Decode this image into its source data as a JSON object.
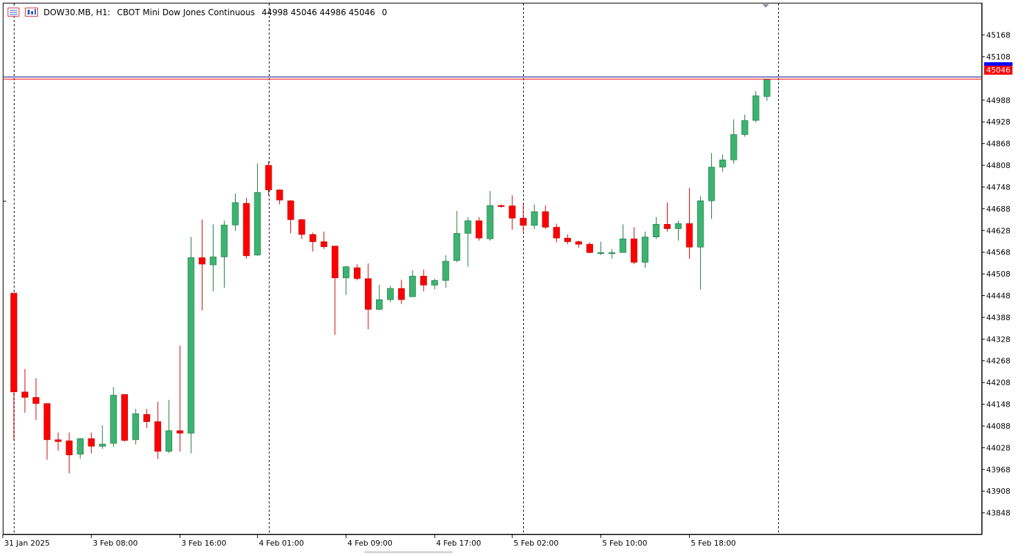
{
  "header": {
    "symbol": "DOW30.MB, H1:",
    "description": "CBOT Mini Dow Jones Continuous",
    "ohlc": "44998 45046 44986 45046",
    "extra": "0",
    "icons": [
      "trade-panel-icon",
      "chart-window-icon"
    ]
  },
  "colors": {
    "bull": "#3cb371",
    "bear": "#ff0000",
    "wick_bull": "#1a7a3a",
    "wick_bear": "#cc0000",
    "grid_separator": "#000000",
    "ask_line": "#000080",
    "bid_line": "#ff0000",
    "bid_label_bg": "#ff0000",
    "ask_label_bg": "#0000ff"
  },
  "price_label": "45046",
  "chart_data": {
    "type": "candlestick",
    "timeframe": "H1",
    "ylim": [
      43790,
      45255
    ],
    "yticks": [
      45168,
      45108,
      44988,
      44928,
      44868,
      44808,
      44748,
      44688,
      44628,
      44568,
      44508,
      44448,
      44388,
      44328,
      44268,
      44208,
      44148,
      44088,
      44028,
      43968,
      43908,
      43848
    ],
    "xticks": [
      "31 Jan 2025",
      "3 Feb 08:00",
      "3 Feb 16:00",
      "4 Feb 01:00",
      "4 Feb 09:00",
      "4 Feb 17:00",
      "5 Feb 02:00",
      "5 Feb 10:00",
      "5 Feb 18:00"
    ],
    "last_price": 45046,
    "ask_price": 45052,
    "candles": [
      {
        "o": 44455,
        "h": 44455,
        "l": 44050,
        "c": 44182
      },
      {
        "o": 44182,
        "h": 44245,
        "l": 44125,
        "c": 44167
      },
      {
        "o": 44167,
        "h": 44220,
        "l": 44105,
        "c": 44150
      },
      {
        "o": 44150,
        "h": 44150,
        "l": 43995,
        "c": 44050
      },
      {
        "o": 44050,
        "h": 44070,
        "l": 44020,
        "c": 44045
      },
      {
        "o": 44047,
        "h": 44070,
        "l": 43957,
        "c": 44008
      },
      {
        "o": 44010,
        "h": 44055,
        "l": 43997,
        "c": 44053
      },
      {
        "o": 44053,
        "h": 44070,
        "l": 44012,
        "c": 44032
      },
      {
        "o": 44032,
        "h": 44090,
        "l": 44025,
        "c": 44038
      },
      {
        "o": 44040,
        "h": 44195,
        "l": 44030,
        "c": 44173
      },
      {
        "o": 44175,
        "h": 44175,
        "l": 44045,
        "c": 44048
      },
      {
        "o": 44050,
        "h": 44135,
        "l": 44037,
        "c": 44122
      },
      {
        "o": 44120,
        "h": 44135,
        "l": 44082,
        "c": 44100
      },
      {
        "o": 44100,
        "h": 44155,
        "l": 43997,
        "c": 44018
      },
      {
        "o": 44018,
        "h": 44160,
        "l": 44013,
        "c": 44075
      },
      {
        "o": 44075,
        "h": 44310,
        "l": 44017,
        "c": 44068
      },
      {
        "o": 44068,
        "h": 44610,
        "l": 44013,
        "c": 44553
      },
      {
        "o": 44553,
        "h": 44658,
        "l": 44407,
        "c": 44535
      },
      {
        "o": 44533,
        "h": 44645,
        "l": 44460,
        "c": 44555
      },
      {
        "o": 44555,
        "h": 44655,
        "l": 44470,
        "c": 44643
      },
      {
        "o": 44643,
        "h": 44730,
        "l": 44627,
        "c": 44705
      },
      {
        "o": 44703,
        "h": 44718,
        "l": 44550,
        "c": 44558
      },
      {
        "o": 44560,
        "h": 44813,
        "l": 44558,
        "c": 44733
      },
      {
        "o": 44808,
        "h": 44818,
        "l": 44725,
        "c": 44740
      },
      {
        "o": 44740,
        "h": 44742,
        "l": 44700,
        "c": 44712
      },
      {
        "o": 44710,
        "h": 44712,
        "l": 44620,
        "c": 44658
      },
      {
        "o": 44658,
        "h": 44660,
        "l": 44605,
        "c": 44617
      },
      {
        "o": 44617,
        "h": 44622,
        "l": 44570,
        "c": 44597
      },
      {
        "o": 44597,
        "h": 44625,
        "l": 44577,
        "c": 44583
      },
      {
        "o": 44585,
        "h": 44585,
        "l": 44340,
        "c": 44497
      },
      {
        "o": 44497,
        "h": 44530,
        "l": 44450,
        "c": 44528
      },
      {
        "o": 44525,
        "h": 44535,
        "l": 44490,
        "c": 44495
      },
      {
        "o": 44495,
        "h": 44537,
        "l": 44355,
        "c": 44410
      },
      {
        "o": 44410,
        "h": 44478,
        "l": 44408,
        "c": 44437
      },
      {
        "o": 44437,
        "h": 44475,
        "l": 44430,
        "c": 44468
      },
      {
        "o": 44468,
        "h": 44492,
        "l": 44425,
        "c": 44437
      },
      {
        "o": 44445,
        "h": 44518,
        "l": 44445,
        "c": 44502
      },
      {
        "o": 44502,
        "h": 44520,
        "l": 44460,
        "c": 44477
      },
      {
        "o": 44477,
        "h": 44495,
        "l": 44465,
        "c": 44490
      },
      {
        "o": 44490,
        "h": 44560,
        "l": 44470,
        "c": 44543
      },
      {
        "o": 44545,
        "h": 44682,
        "l": 44540,
        "c": 44620
      },
      {
        "o": 44620,
        "h": 44665,
        "l": 44528,
        "c": 44655
      },
      {
        "o": 44655,
        "h": 44665,
        "l": 44600,
        "c": 44607
      },
      {
        "o": 44605,
        "h": 44737,
        "l": 44600,
        "c": 44697
      },
      {
        "o": 44697,
        "h": 44700,
        "l": 44690,
        "c": 44694
      },
      {
        "o": 44696,
        "h": 44725,
        "l": 44630,
        "c": 44662
      },
      {
        "o": 44662,
        "h": 44700,
        "l": 44625,
        "c": 44642
      },
      {
        "o": 44642,
        "h": 44700,
        "l": 44632,
        "c": 44680
      },
      {
        "o": 44680,
        "h": 44697,
        "l": 44632,
        "c": 44637
      },
      {
        "o": 44637,
        "h": 44647,
        "l": 44595,
        "c": 44607
      },
      {
        "o": 44607,
        "h": 44617,
        "l": 44590,
        "c": 44597
      },
      {
        "o": 44597,
        "h": 44600,
        "l": 44580,
        "c": 44590
      },
      {
        "o": 44590,
        "h": 44595,
        "l": 44565,
        "c": 44567
      },
      {
        "o": 44567,
        "h": 44597,
        "l": 44560,
        "c": 44567
      },
      {
        "o": 44567,
        "h": 44577,
        "l": 44550,
        "c": 44567
      },
      {
        "o": 44567,
        "h": 44645,
        "l": 44567,
        "c": 44605
      },
      {
        "o": 44605,
        "h": 44637,
        "l": 44535,
        "c": 44540
      },
      {
        "o": 44540,
        "h": 44625,
        "l": 44525,
        "c": 44610
      },
      {
        "o": 44610,
        "h": 44665,
        "l": 44605,
        "c": 44645
      },
      {
        "o": 44645,
        "h": 44705,
        "l": 44625,
        "c": 44633
      },
      {
        "o": 44633,
        "h": 44655,
        "l": 44600,
        "c": 44647
      },
      {
        "o": 44647,
        "h": 44745,
        "l": 44550,
        "c": 44582
      },
      {
        "o": 44582,
        "h": 44722,
        "l": 44465,
        "c": 44710
      },
      {
        "o": 44710,
        "h": 44842,
        "l": 44660,
        "c": 44803
      },
      {
        "o": 44803,
        "h": 44838,
        "l": 44790,
        "c": 44823
      },
      {
        "o": 44823,
        "h": 44935,
        "l": 44813,
        "c": 44893
      },
      {
        "o": 44893,
        "h": 44948,
        "l": 44887,
        "c": 44932
      },
      {
        "o": 44932,
        "h": 45013,
        "l": 44927,
        "c": 45000
      },
      {
        "o": 44998,
        "h": 45046,
        "l": 44986,
        "c": 45046
      }
    ]
  }
}
